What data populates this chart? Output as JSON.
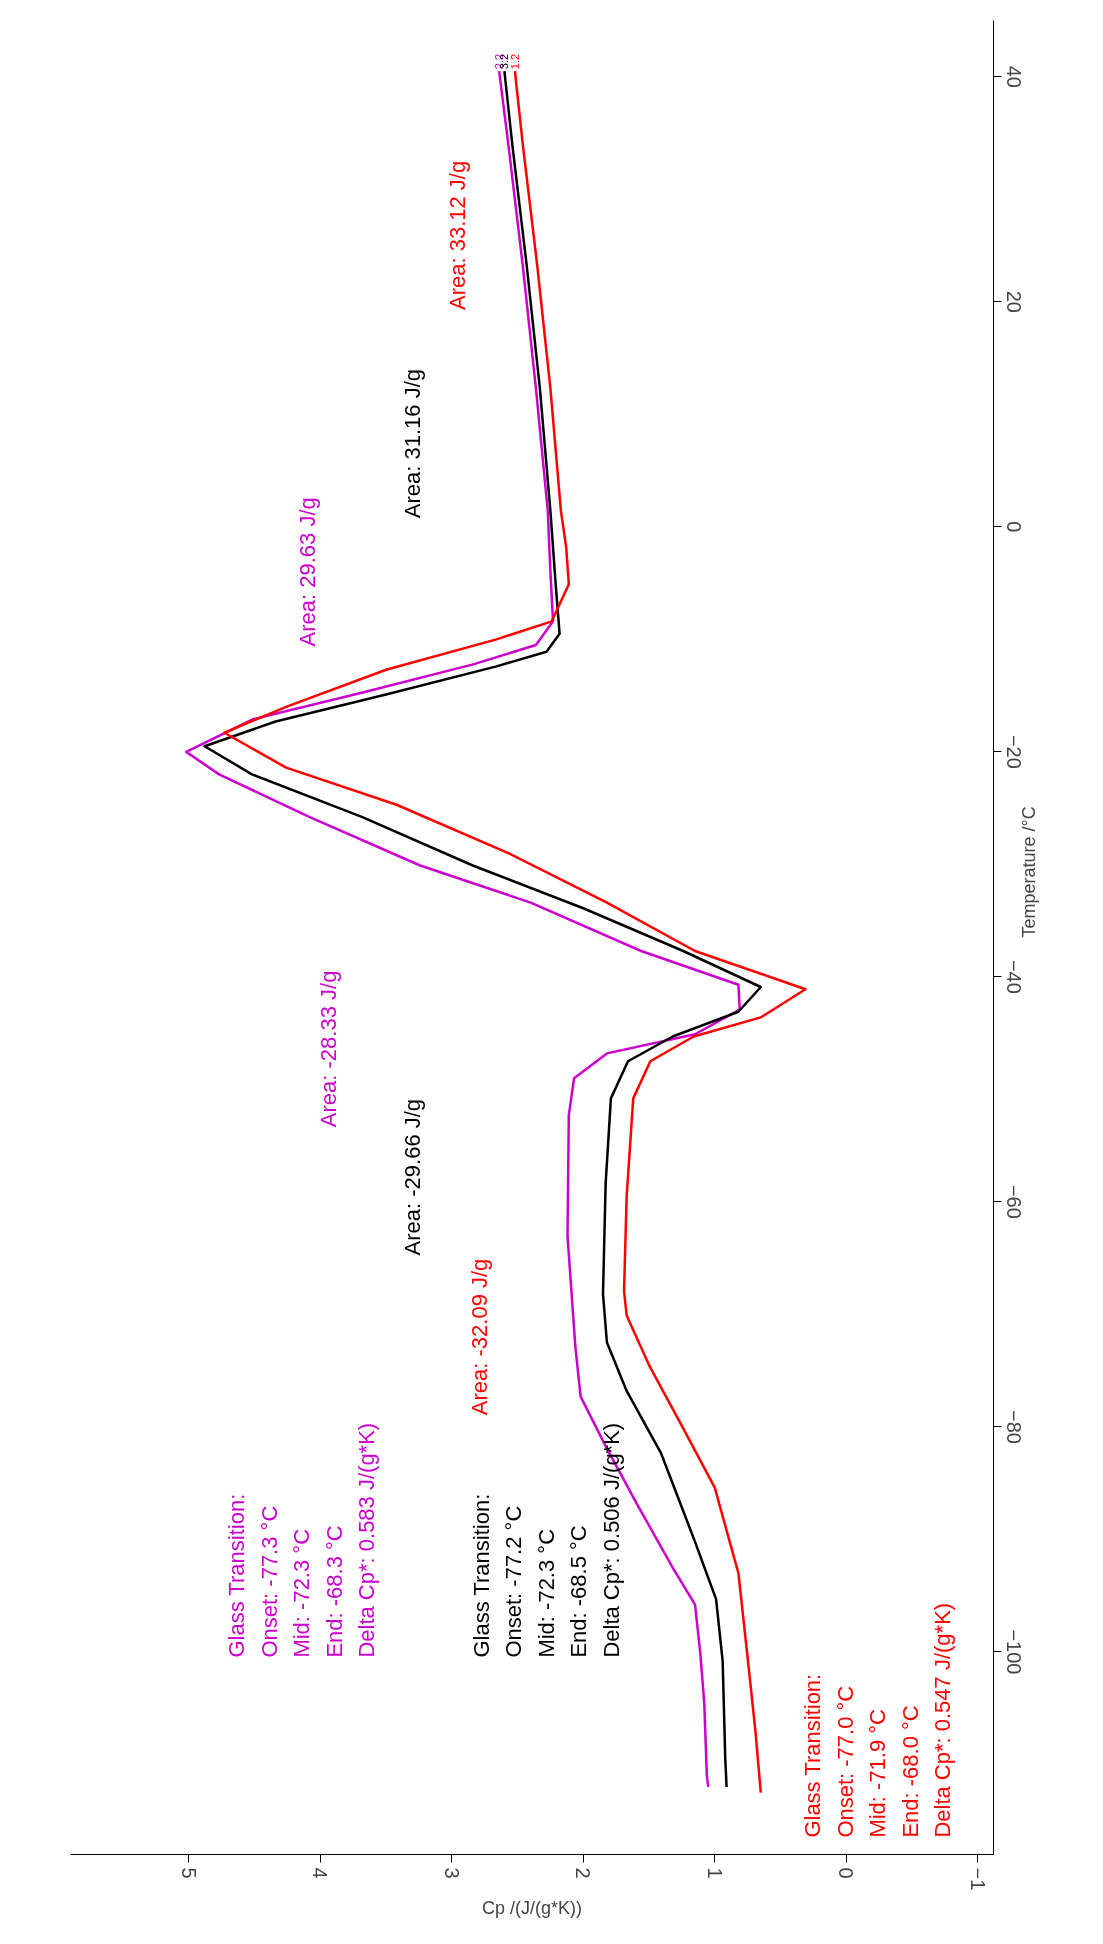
{
  "chart_data": {
    "type": "line",
    "xlabel": "Cp /(J/(g*K))",
    "ylabel": "Temperature /°C",
    "xlim": [
      5.9,
      -1.12
    ],
    "ylim": [
      -118,
      45
    ],
    "xticks": [
      5,
      4,
      3,
      2,
      1,
      0,
      -1
    ],
    "yticks": [
      -100,
      -80,
      -60,
      -40,
      -20,
      0,
      20,
      40
    ],
    "grid": false,
    "marker": "none",
    "line_style": "solid",
    "series": [
      {
        "name": "2.2",
        "color": "#cc00cc",
        "x": [
          2.64,
          2.57,
          2.46,
          2.36,
          2.27,
          2.25,
          2.23,
          2.36,
          2.83,
          3.67,
          4.51,
          5.02,
          4.77,
          4.08,
          3.24,
          2.4,
          1.56,
          0.82,
          0.81,
          1.15,
          1.82,
          2.07,
          2.11,
          2.12,
          2.08,
          2.06,
          2.02,
          1.83,
          1.58,
          1.32,
          1.15,
          1.11,
          1.08,
          1.06,
          1.05
        ],
        "values": [
          40.5,
          34,
          23.2,
          12.3,
          1.4,
          -4,
          -8.4,
          -10.5,
          -12.2,
          -14.7,
          -17.1,
          -20,
          -22,
          -25.8,
          -30.1,
          -33.4,
          -37.7,
          -40.7,
          -42.9,
          -45.1,
          -46.8,
          -49,
          -52.3,
          -63,
          -69.6,
          -72.9,
          -77.3,
          -81.7,
          -87.1,
          -92.5,
          -95.8,
          -100.1,
          -104.5,
          -111,
          -112
        ]
      },
      {
        "name": "3.2",
        "color": "#000000",
        "x": [
          2.6,
          2.54,
          2.43,
          2.33,
          2.25,
          2.21,
          2.18,
          2.28,
          2.66,
          3.5,
          4.34,
          4.88,
          4.52,
          3.68,
          2.84,
          2.0,
          1.24,
          0.65,
          0.82,
          1.32,
          1.66,
          1.79,
          1.83,
          1.85,
          1.82,
          1.67,
          1.41,
          1.16,
          0.99,
          0.94,
          0.92,
          0.91
        ],
        "values": [
          40.5,
          34,
          23.2,
          12.3,
          1.4,
          -5.1,
          -9.5,
          -11.1,
          -12.4,
          -14.9,
          -17.3,
          -19.5,
          -22,
          -25.8,
          -30.1,
          -33.9,
          -37.7,
          -40.9,
          -43.1,
          -45.3,
          -47.5,
          -50.8,
          -58.4,
          -68.2,
          -72.5,
          -76.8,
          -82.3,
          -89.9,
          -95.3,
          -100.8,
          -109.5,
          -112
        ]
      },
      {
        "name": "1.2",
        "color": "#ff0000",
        "x": [
          2.52,
          2.46,
          2.35,
          2.25,
          2.17,
          2.13,
          2.11,
          2.24,
          2.66,
          3.5,
          4.26,
          4.73,
          4.26,
          3.42,
          2.57,
          1.82,
          1.15,
          0.31,
          0.65,
          1.16,
          1.49,
          1.62,
          1.67,
          1.69,
          1.67,
          1.5,
          1.25,
          1.0,
          0.82,
          0.74,
          0.69,
          0.65
        ],
        "values": [
          40.5,
          34,
          23.2,
          12.3,
          1.4,
          -1.8,
          -5.1,
          -8.4,
          -10,
          -12.7,
          -16,
          -18.3,
          -21.4,
          -24.7,
          -29,
          -33.4,
          -37.7,
          -41.1,
          -43.6,
          -45.3,
          -47.5,
          -50.8,
          -59.5,
          -67.9,
          -70.1,
          -74.5,
          -79.9,
          -85.4,
          -93,
          -101.6,
          -107.1,
          -112.5
        ]
      }
    ],
    "annotations": [
      "Area: 29.63 J/g",
      "Area: 31.16 J/g",
      "Area: 33.12 J/g",
      "Area: -28.33 J/g",
      "Area: -29.66 J/g",
      "Area: -32.09 J/g",
      "Glass Transition:\nOnset:       -77.3 °C\nMid:           -72.3 °C\nEnd:           -68.3 °C\nDelta Cp*:    0.583 J/(g*K)",
      "Glass Transition:\nOnset:       -77.2 °C\nMid:           -72.3 °C\nEnd:           -68.5 °C\nDelta Cp*:    0.506 J/(g*K)",
      "Glass Transition:\nOnset:       -77.0 °C\nMid:           -71.9 °C\nEnd:           -68.0 °C\nDelta Cp*:    0.547 J/(g*K)"
    ]
  }
}
